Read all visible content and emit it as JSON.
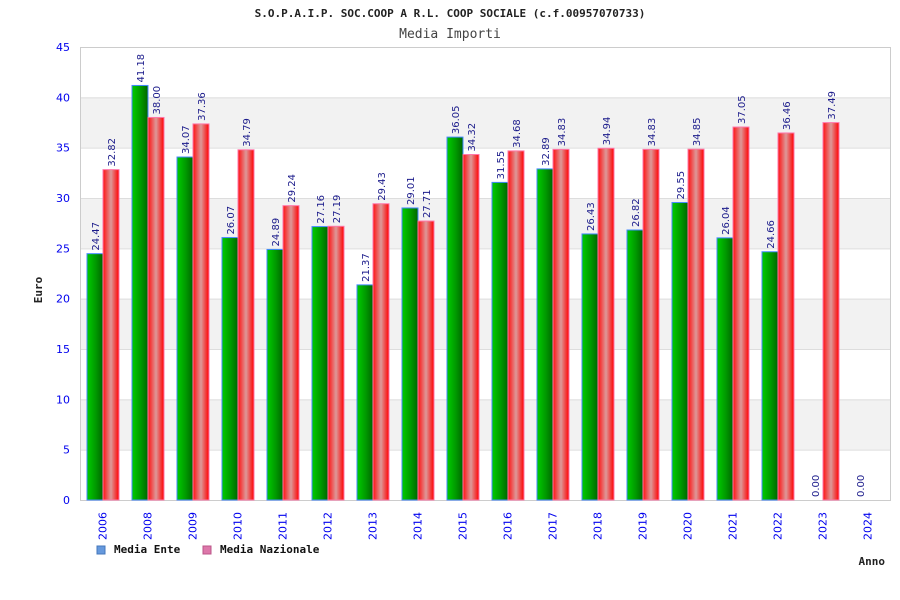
{
  "chart_data": {
    "type": "bar",
    "title": "S.O.P.A.I.P. SOC.COOP A R.L. COOP SOCIALE (c.f.00957070733)",
    "subtitle": "Media Importi",
    "xlabel": "Anno",
    "ylabel": "Euro",
    "ylim": [
      0,
      45
    ],
    "yticks": [
      "0",
      "5",
      "10",
      "15",
      "20",
      "25",
      "30",
      "35",
      "40",
      "45"
    ],
    "grid": true,
    "legend_position": "bottom-left",
    "categories": [
      "2006",
      "2008",
      "2009",
      "2010",
      "2011",
      "2012",
      "2013",
      "2014",
      "2015",
      "2016",
      "2017",
      "2018",
      "2019",
      "2020",
      "2021",
      "2022",
      "2023",
      "2024"
    ],
    "series": [
      {
        "name": "Media Ente",
        "color": "#00aa00",
        "values": [
          24.47,
          41.18,
          34.07,
          26.07,
          24.89,
          27.16,
          21.37,
          29.01,
          36.05,
          31.55,
          32.89,
          26.43,
          26.82,
          29.55,
          26.04,
          24.66,
          0.0,
          0.0
        ],
        "labels": [
          "24.47",
          "41.18",
          "34.07",
          "26.07",
          "24.89",
          "27.16",
          "21.37",
          "29.01",
          "36.05",
          "31.55",
          "32.89",
          "26.43",
          "26.82",
          "29.55",
          "26.04",
          "24.66",
          "0.00",
          "0.00"
        ]
      },
      {
        "name": "Media Nazionale",
        "color": "#ee1111",
        "values": [
          32.82,
          38.0,
          37.36,
          34.79,
          29.24,
          27.19,
          29.43,
          27.71,
          34.32,
          34.68,
          34.83,
          34.94,
          34.83,
          34.85,
          37.05,
          36.46,
          37.49,
          null
        ],
        "labels": [
          "32.82",
          "38.00",
          "37.36",
          "34.79",
          "29.24",
          "27.19",
          "29.43",
          "27.71",
          "34.32",
          "34.68",
          "34.83",
          "34.94",
          "34.83",
          "34.85",
          "37.05",
          "36.46",
          "37.49",
          null
        ]
      }
    ],
    "legend_colors": [
      "#6699dd",
      "#dd77aa"
    ]
  }
}
